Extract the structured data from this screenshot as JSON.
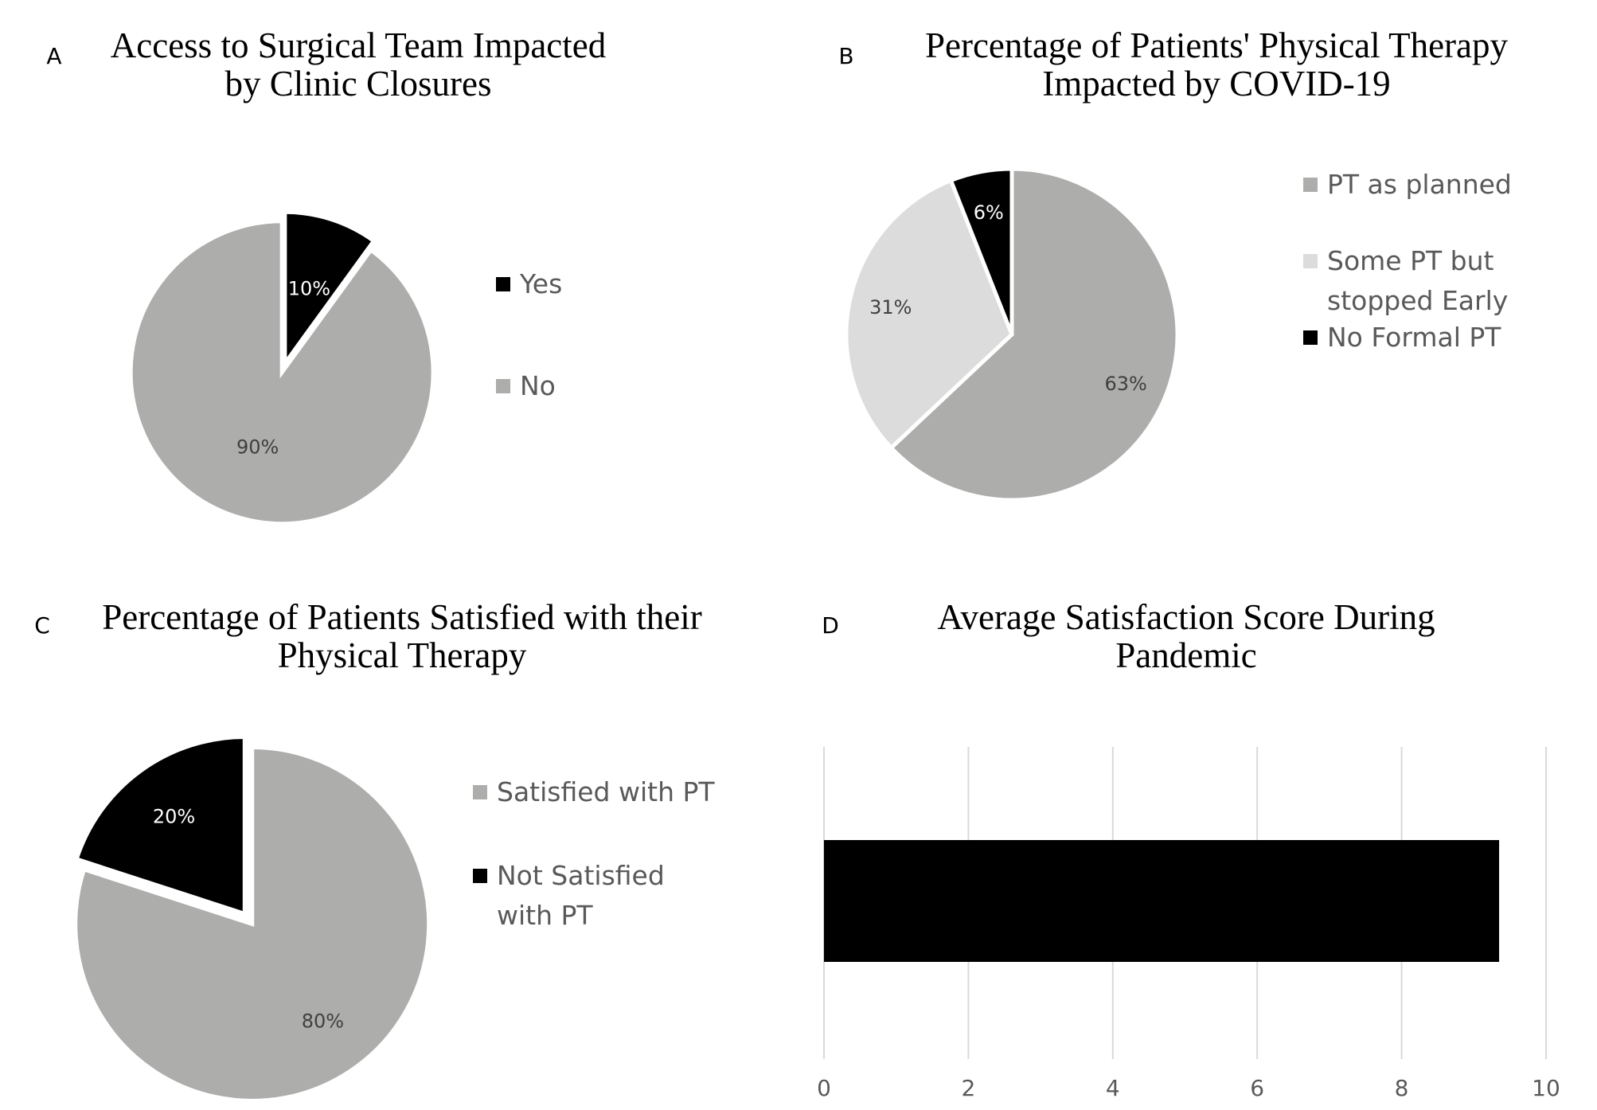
{
  "colors": {
    "gray": "#adadac",
    "light_gray": "#dcdcdc",
    "black": "#000000",
    "legend_text": "#595959",
    "gridline": "#d9d9d9"
  },
  "chart_data": [
    {
      "type": "pie",
      "panel": "A",
      "title": [
        "Access to Surgical Team Impacted",
        "by Clinic Closures"
      ],
      "slices": [
        {
          "label": "Yes",
          "value": 10,
          "display": "10%",
          "color": "#000000",
          "label_color": "#ffffff"
        },
        {
          "label": "No",
          "value": 90,
          "display": "90%",
          "color": "#adadac",
          "label_color": "#404040"
        }
      ],
      "legend": [
        {
          "label": "Yes",
          "color": "#000000"
        },
        {
          "label": "No",
          "color": "#adadac"
        }
      ],
      "legend_placement": "right"
    },
    {
      "type": "pie",
      "panel": "B",
      "title": [
        "Percentage of Patients' Physical Therapy",
        "Impacted by COVID-19"
      ],
      "slices": [
        {
          "label": "PT as planned",
          "value": 63,
          "display": "63%",
          "color": "#adadac",
          "label_color": "#404040"
        },
        {
          "label": "Some PT but stopped Early",
          "value": 31,
          "display": "31%",
          "color": "#dcdcdc",
          "label_color": "#404040"
        },
        {
          "label": "No Formal PT",
          "value": 6,
          "display": "6%",
          "color": "#000000",
          "label_color": "#ffffff"
        }
      ],
      "legend": [
        {
          "label": "PT as planned",
          "lines": [
            "PT as planned"
          ],
          "color": "#adadac"
        },
        {
          "label": "Some PT but stopped Early",
          "lines": [
            "Some PT but",
            "stopped Early"
          ],
          "color": "#dcdcdc"
        },
        {
          "label": "No Formal PT",
          "lines": [
            "No Formal PT"
          ],
          "color": "#000000"
        }
      ],
      "legend_placement": "right"
    },
    {
      "type": "pie",
      "panel": "C",
      "title": [
        "Percentage of Patients Satisfied with their",
        "Physical Therapy"
      ],
      "slices": [
        {
          "label": "Satisfied with PT",
          "value": 80,
          "display": "80%",
          "color": "#adadac",
          "label_color": "#404040"
        },
        {
          "label": "Not Satisfied with PT",
          "value": 20,
          "display": "20%",
          "color": "#000000",
          "label_color": "#ffffff"
        }
      ],
      "legend": [
        {
          "label": "Satisfied with PT",
          "lines": [
            "Satisfied with PT"
          ],
          "color": "#adadac"
        },
        {
          "label": "Not Satisfied with PT",
          "lines": [
            "Not Satisfied",
            "with PT"
          ],
          "color": "#000000"
        }
      ],
      "legend_placement": "right"
    },
    {
      "type": "bar",
      "orientation": "horizontal",
      "panel": "D",
      "title": [
        "Average Satisfaction Score During",
        "Pandemic"
      ],
      "categories": [
        ""
      ],
      "values": [
        9.35
      ],
      "xlim": [
        0,
        10
      ],
      "xticks": [
        0,
        2,
        4,
        6,
        8,
        10
      ],
      "grid": true,
      "bar_color": "#000000"
    }
  ]
}
